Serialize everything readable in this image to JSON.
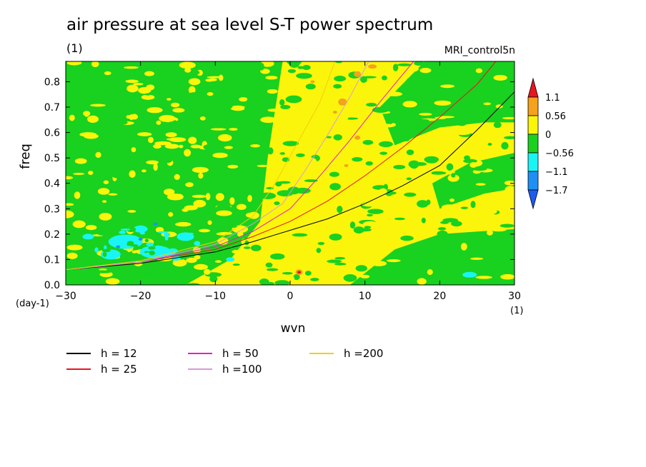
{
  "header": {
    "title": "air pressure at sea level S-T power spectrum",
    "subtitle": "(1)",
    "model": "MRI_control5n"
  },
  "chart_data": {
    "type": "heatmap",
    "title": "air pressure at sea level S-T power spectrum",
    "xlabel": "wvn",
    "ylabel": "freq",
    "x_unit": "(1)",
    "y_unit": "(day-1)",
    "xlim": [
      -30,
      30
    ],
    "ylim": [
      0,
      0.88
    ],
    "x_ticks": [
      -30,
      -20,
      -10,
      0,
      10,
      20,
      30
    ],
    "y_ticks": [
      0.0,
      0.1,
      0.2,
      0.3,
      0.4,
      0.5,
      0.6,
      0.7,
      0.8
    ],
    "x_tick_labels": [
      "−30",
      "−20",
      "−10",
      "0",
      "10",
      "20",
      "30"
    ],
    "y_tick_labels": [
      "0.0",
      "0.1",
      "0.2",
      "0.3",
      "0.4",
      "0.5",
      "0.6",
      "0.7",
      "0.8"
    ],
    "colorbar": {
      "labels": [
        "1.1",
        "0.56",
        "0",
        "−0.56",
        "−1.1",
        "−1.7"
      ],
      "colors": [
        "#e8141e",
        "#f5a21c",
        "#fbf50b",
        "#19d11f",
        "#19f5f5",
        "#1e90f5",
        "#1e5cf0"
      ]
    },
    "field_colors": {
      "green": "#19d11f",
      "yellow": "#fbf50b",
      "orange": "#f5a21c",
      "cyan": "#19f5f5",
      "blue": "#1e90f5",
      "red": "#e8141e"
    },
    "dispersion_curves": [
      {
        "label": "h = 12",
        "color": "#000000",
        "points": [
          [
            -30,
            0.06
          ],
          [
            -20,
            0.085
          ],
          [
            -10,
            0.13
          ],
          [
            -5,
            0.17
          ],
          [
            0,
            0.215
          ],
          [
            5,
            0.26
          ],
          [
            10,
            0.32
          ],
          [
            15,
            0.39
          ],
          [
            20,
            0.47
          ],
          [
            25,
            0.61
          ],
          [
            30,
            0.76
          ]
        ]
      },
      {
        "label": "h = 25",
        "color": "#e8141e",
        "points": [
          [
            -30,
            0.06
          ],
          [
            -20,
            0.09
          ],
          [
            -10,
            0.14
          ],
          [
            -5,
            0.19
          ],
          [
            0,
            0.25
          ],
          [
            5,
            0.33
          ],
          [
            10,
            0.43
          ],
          [
            15,
            0.54
          ],
          [
            20,
            0.66
          ],
          [
            25,
            0.79
          ],
          [
            27.5,
            0.88
          ]
        ]
      },
      {
        "label": "h = 50",
        "color": "#e020c0",
        "points": [
          [
            -30,
            0.06
          ],
          [
            -20,
            0.09
          ],
          [
            -10,
            0.15
          ],
          [
            -5,
            0.21
          ],
          [
            0,
            0.3
          ],
          [
            4,
            0.43
          ],
          [
            8,
            0.57
          ],
          [
            12,
            0.72
          ],
          [
            16.5,
            0.88
          ]
        ]
      },
      {
        "label": "h =100",
        "color": "#d89ad8",
        "points": [
          [
            -30,
            0.06
          ],
          [
            -20,
            0.09
          ],
          [
            -10,
            0.16
          ],
          [
            -5,
            0.24
          ],
          [
            -1,
            0.32
          ],
          [
            2,
            0.45
          ],
          [
            5,
            0.59
          ],
          [
            8,
            0.74
          ],
          [
            10.5,
            0.88
          ]
        ]
      },
      {
        "label": "h =200",
        "color": "#f0d010",
        "points": [
          [
            -30,
            0.06
          ],
          [
            -20,
            0.095
          ],
          [
            -10,
            0.17
          ],
          [
            -5,
            0.27
          ],
          [
            -2,
            0.4
          ],
          [
            1,
            0.56
          ],
          [
            4,
            0.72
          ],
          [
            6,
            0.88
          ]
        ]
      }
    ]
  }
}
